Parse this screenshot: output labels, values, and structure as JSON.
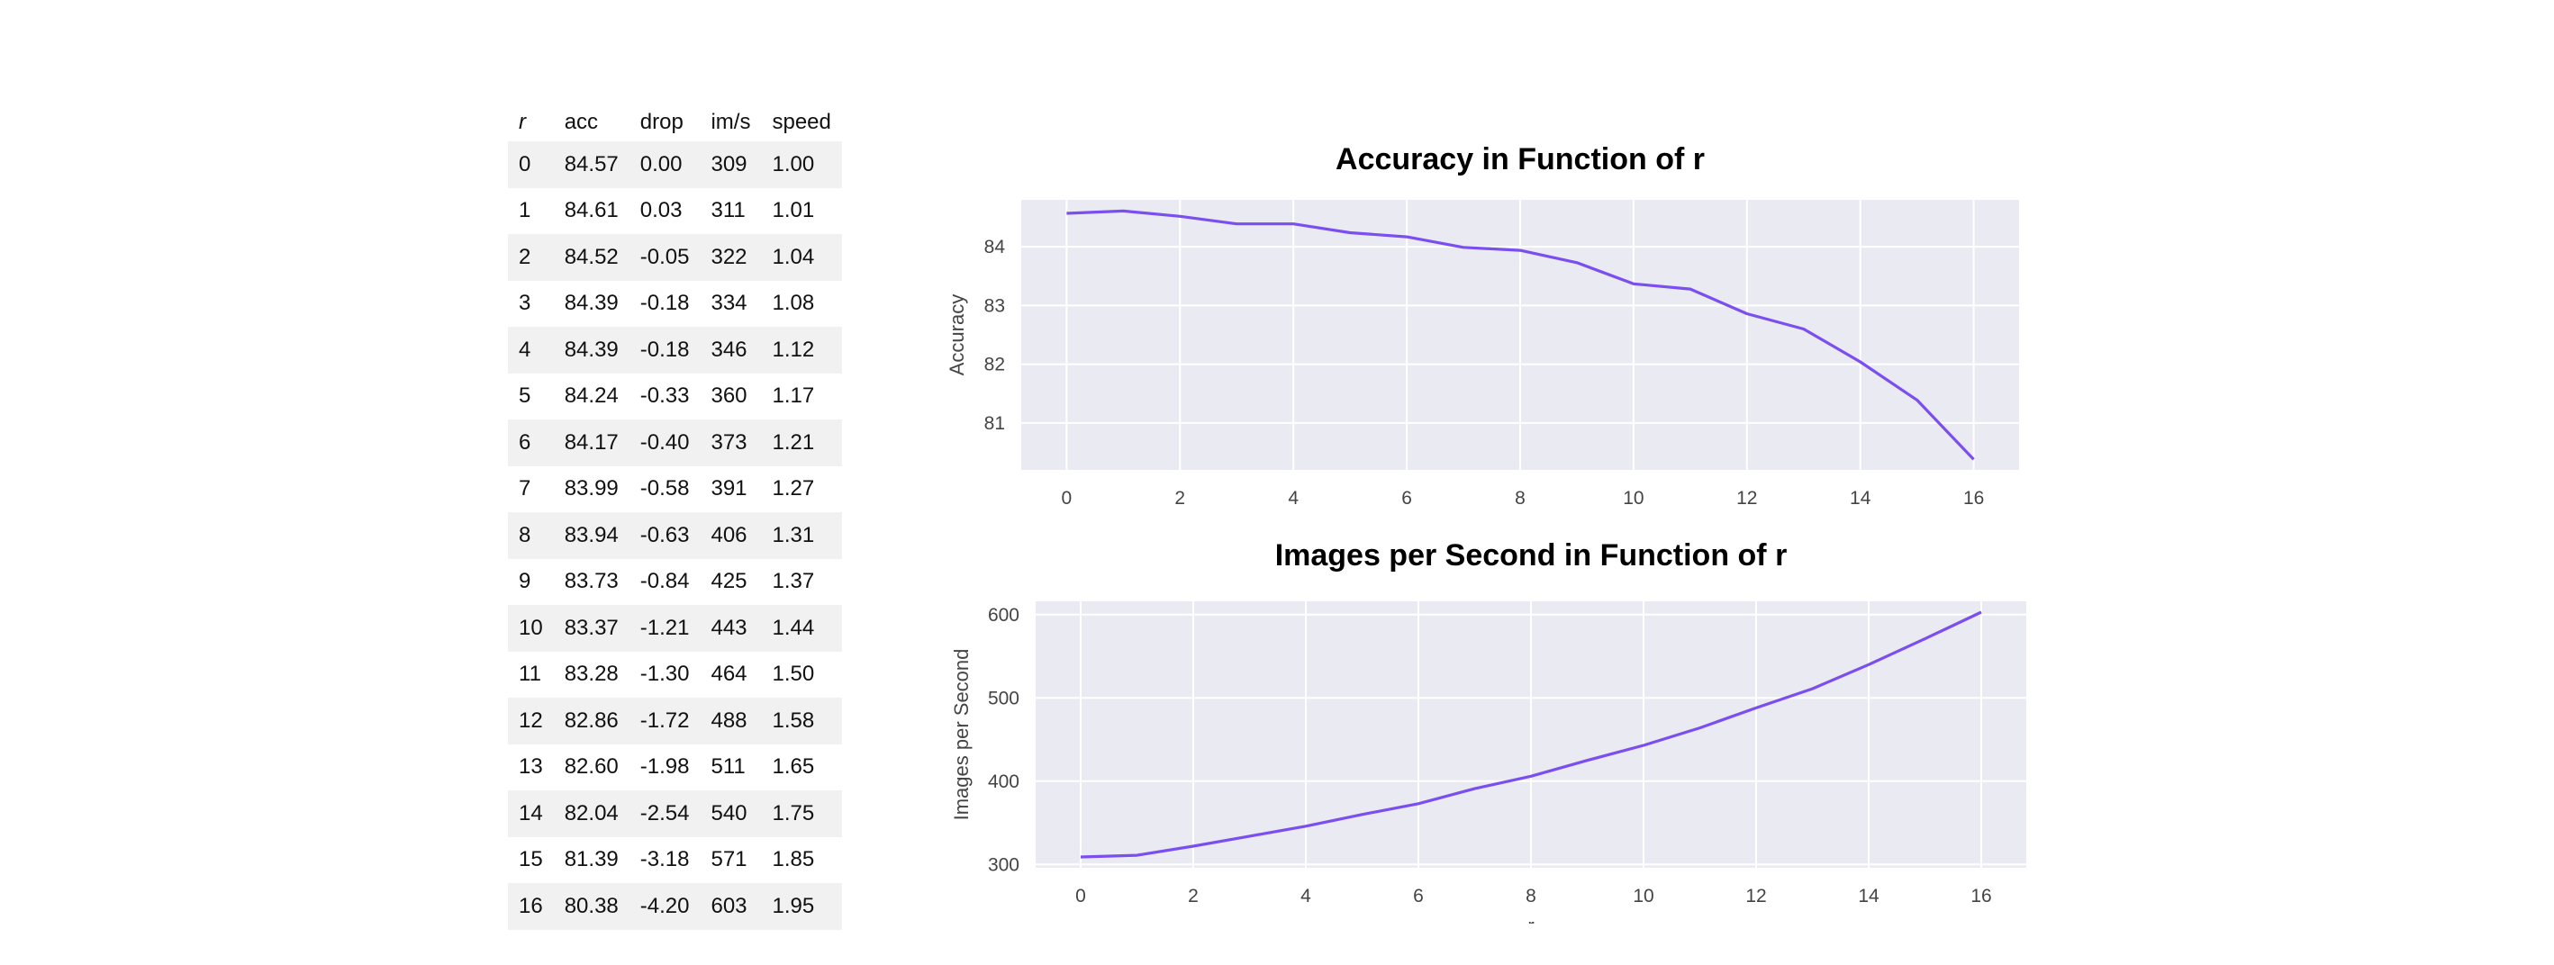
{
  "table": {
    "headers": [
      "r",
      "acc",
      "drop",
      "im/s",
      "speed"
    ],
    "rows": [
      [
        "0",
        "84.57",
        "0.00",
        "309",
        "1.00"
      ],
      [
        "1",
        "84.61",
        "0.03",
        "311",
        "1.01"
      ],
      [
        "2",
        "84.52",
        "-0.05",
        "322",
        "1.04"
      ],
      [
        "3",
        "84.39",
        "-0.18",
        "334",
        "1.08"
      ],
      [
        "4",
        "84.39",
        "-0.18",
        "346",
        "1.12"
      ],
      [
        "5",
        "84.24",
        "-0.33",
        "360",
        "1.17"
      ],
      [
        "6",
        "84.17",
        "-0.40",
        "373",
        "1.21"
      ],
      [
        "7",
        "83.99",
        "-0.58",
        "391",
        "1.27"
      ],
      [
        "8",
        "83.94",
        "-0.63",
        "406",
        "1.31"
      ],
      [
        "9",
        "83.73",
        "-0.84",
        "425",
        "1.37"
      ],
      [
        "10",
        "83.37",
        "-1.21",
        "443",
        "1.44"
      ],
      [
        "11",
        "83.28",
        "-1.30",
        "464",
        "1.50"
      ],
      [
        "12",
        "82.86",
        "-1.72",
        "488",
        "1.58"
      ],
      [
        "13",
        "82.60",
        "-1.98",
        "511",
        "1.65"
      ],
      [
        "14",
        "82.04",
        "-2.54",
        "540",
        "1.75"
      ],
      [
        "15",
        "81.39",
        "-3.18",
        "571",
        "1.85"
      ],
      [
        "16",
        "80.38",
        "-4.20",
        "603",
        "1.95"
      ]
    ]
  },
  "chart_data": [
    {
      "type": "line",
      "title": "Accuracy in Function of r",
      "xlabel": "",
      "ylabel": "Accuracy",
      "x": [
        0,
        1,
        2,
        3,
        4,
        5,
        6,
        7,
        8,
        9,
        10,
        11,
        12,
        13,
        14,
        15,
        16
      ],
      "series": [
        {
          "values": [
            84.57,
            84.61,
            84.52,
            84.39,
            84.39,
            84.24,
            84.17,
            83.99,
            83.94,
            83.73,
            83.37,
            83.28,
            82.86,
            82.6,
            82.04,
            81.39,
            80.38
          ]
        }
      ],
      "xlim": [
        -0.8,
        16.8
      ],
      "ylim": [
        80.2,
        84.8
      ],
      "xticks": [
        0,
        2,
        4,
        6,
        8,
        10,
        12,
        14,
        16
      ],
      "yticks": [
        81,
        82,
        83,
        84
      ],
      "grid": true,
      "line_color": "#7b4ef0",
      "background": "#eaeaf2"
    },
    {
      "type": "line",
      "title": "Images per Second in Function of r",
      "xlabel": "r",
      "ylabel": "Images per Second",
      "x": [
        0,
        1,
        2,
        3,
        4,
        5,
        6,
        7,
        8,
        9,
        10,
        11,
        12,
        13,
        14,
        15,
        16
      ],
      "series": [
        {
          "values": [
            309,
            311,
            322,
            334,
            346,
            360,
            373,
            391,
            406,
            425,
            443,
            464,
            488,
            511,
            540,
            571,
            603
          ]
        }
      ],
      "xlim": [
        -0.8,
        16.8
      ],
      "ylim": [
        296,
        616
      ],
      "xticks": [
        0,
        2,
        4,
        6,
        8,
        10,
        12,
        14,
        16
      ],
      "yticks": [
        300,
        400,
        500,
        600
      ],
      "grid": true,
      "line_color": "#7b4ef0",
      "background": "#eaeaf2"
    }
  ]
}
